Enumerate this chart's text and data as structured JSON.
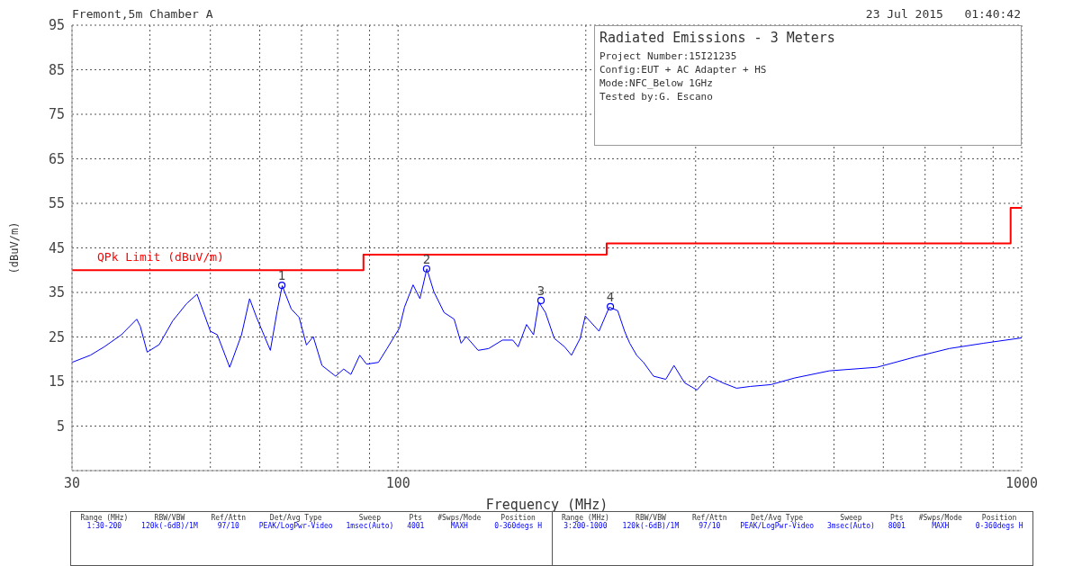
{
  "chart_data": {
    "type": "line",
    "title": "Radiated Emissions - 3 Meters",
    "xlabel": "Frequency (MHz)",
    "ylabel": "(dBuV/m)",
    "xlim": [
      30,
      1000
    ],
    "ylim": [
      -5,
      95
    ],
    "xticks": [
      30,
      {
        "value": 40,
        "label": null
      },
      {
        "value": 50,
        "label": null
      },
      {
        "value": 60,
        "label": null
      },
      {
        "value": 70,
        "label": null
      },
      {
        "value": 80,
        "label": null
      },
      {
        "value": 90,
        "label": null
      },
      100,
      {
        "value": 200,
        "label": null
      },
      {
        "value": 300,
        "label": null
      },
      {
        "value": 400,
        "label": null
      },
      {
        "value": 500,
        "label": null
      },
      {
        "value": 600,
        "label": null
      },
      {
        "value": 700,
        "label": null
      },
      {
        "value": 800,
        "label": null
      },
      {
        "value": 900,
        "label": null
      },
      1000
    ],
    "yticks": [
      5,
      15,
      25,
      35,
      45,
      55,
      65,
      75,
      85,
      95
    ],
    "log": "x",
    "grid": true,
    "series": [
      {
        "color": "#0000ff",
        "x": [
          30,
          32.1,
          33.8,
          36.0,
          38.1,
          38.6,
          39.6,
          41.4,
          43.5,
          45.8,
          47.6,
          50.0,
          51.3,
          53.7,
          56.1,
          57.8,
          59.3,
          62.4,
          64.0,
          65.2,
          67.4,
          69.4,
          71.3,
          73.1,
          75.5,
          79.4,
          81.8,
          84.0,
          86.8,
          89.0,
          93.0,
          96.0,
          100.5,
          102.4,
          105.7,
          108.4,
          111.2,
          114.1,
          118.5,
          123.0,
          126.2,
          128.6,
          134.4,
          139.7,
          147.0,
          152.7,
          155.8,
          160.7,
          164.9,
          168.2,
          172.3,
          178.0,
          184.9,
          189.7,
          195.9,
          199.6,
          210.0,
          218.1,
          225.0,
          230.8,
          235.2,
          241.3,
          247.5,
          256.8,
          268.7,
          277.0,
          288.1,
          301.5,
          315.4,
          331.7,
          349.0,
          367.2,
          396.0,
          432.6,
          491.5,
          586,
          674,
          765,
          869,
          1000
        ],
        "values": [
          19.3,
          20.9,
          22.8,
          25.5,
          29.0,
          27.4,
          21.6,
          23.3,
          28.6,
          32.5,
          34.6,
          26.3,
          25.5,
          18.2,
          25.5,
          33.6,
          29.4,
          22.0,
          30.9,
          36.5,
          31.3,
          29.4,
          23.2,
          25.1,
          18.6,
          16.2,
          17.8,
          16.6,
          20.9,
          18.9,
          19.3,
          22.4,
          27.0,
          31.7,
          36.7,
          33.6,
          40.3,
          35.2,
          30.5,
          29.0,
          23.6,
          25.1,
          22.0,
          22.4,
          24.3,
          24.3,
          22.8,
          27.8,
          25.5,
          32.8,
          30.5,
          24.7,
          22.8,
          20.9,
          24.7,
          29.7,
          26.3,
          31.7,
          30.9,
          26.3,
          23.6,
          20.9,
          19.3,
          16.2,
          15.5,
          18.6,
          14.7,
          13.1,
          16.2,
          14.7,
          13.5,
          13.9,
          14.3,
          15.8,
          17.4,
          18.2,
          20.5,
          22.4,
          23.6,
          24.8
        ]
      },
      {
        "type": "step",
        "name": "QPk Limit (dBuV/m)",
        "color": "#ff0000",
        "x": [
          30,
          88,
          216,
          960,
          1000
        ],
        "values": [
          40,
          43.5,
          46,
          54,
          54
        ]
      },
      {
        "type": "scatter",
        "color": "#0000ff",
        "marker": "circle",
        "x": [
          65.1,
          111.1,
          169.5,
          219
        ],
        "values": [
          36.6,
          40.3,
          33.2,
          31.8
        ]
      }
    ],
    "annotations": [
      "Fremont,5m Chamber A",
      "23 Jul 2015   01:40:42",
      "Project Number:15I21235",
      "Config:EUT + AC Adapter + HS",
      "Mode:NFC_Below 1GHz",
      "Tested by:G. Escano",
      "Range (MHz)",
      "RBW/VBW",
      "Ref/Attn",
      "Det/Avg Type",
      "Sweep",
      "Pts",
      "#Swps/Mode",
      "Position",
      "1:30-200",
      "120k(-6dB)/1M",
      "97/10",
      "PEAK/LogPwr-Video",
      "1msec(Auto)",
      "4001",
      "MAXH",
      "0-360degs H",
      "Range (MHz)",
      "RBW/VBW",
      "Ref/Attn",
      "Det/Avg Type",
      "Sweep",
      "Pts",
      "#Swps/Mode",
      "Position",
      "3:200-1000",
      "120k(-6dB)/1M",
      "97/10",
      "PEAK/LogPwr-Video",
      "3msec(Auto)",
      "8001",
      "MAXH",
      "0-360degs H",
      {
        "text": "1",
        "x": 65.1,
        "y": 36.6
      },
      {
        "text": "2",
        "x": 111.1,
        "y": 40.3
      },
      {
        "text": "3",
        "x": 169.5,
        "y": 33.2
      },
      {
        "text": "4",
        "x": 219,
        "y": 31.8
      }
    ]
  }
}
